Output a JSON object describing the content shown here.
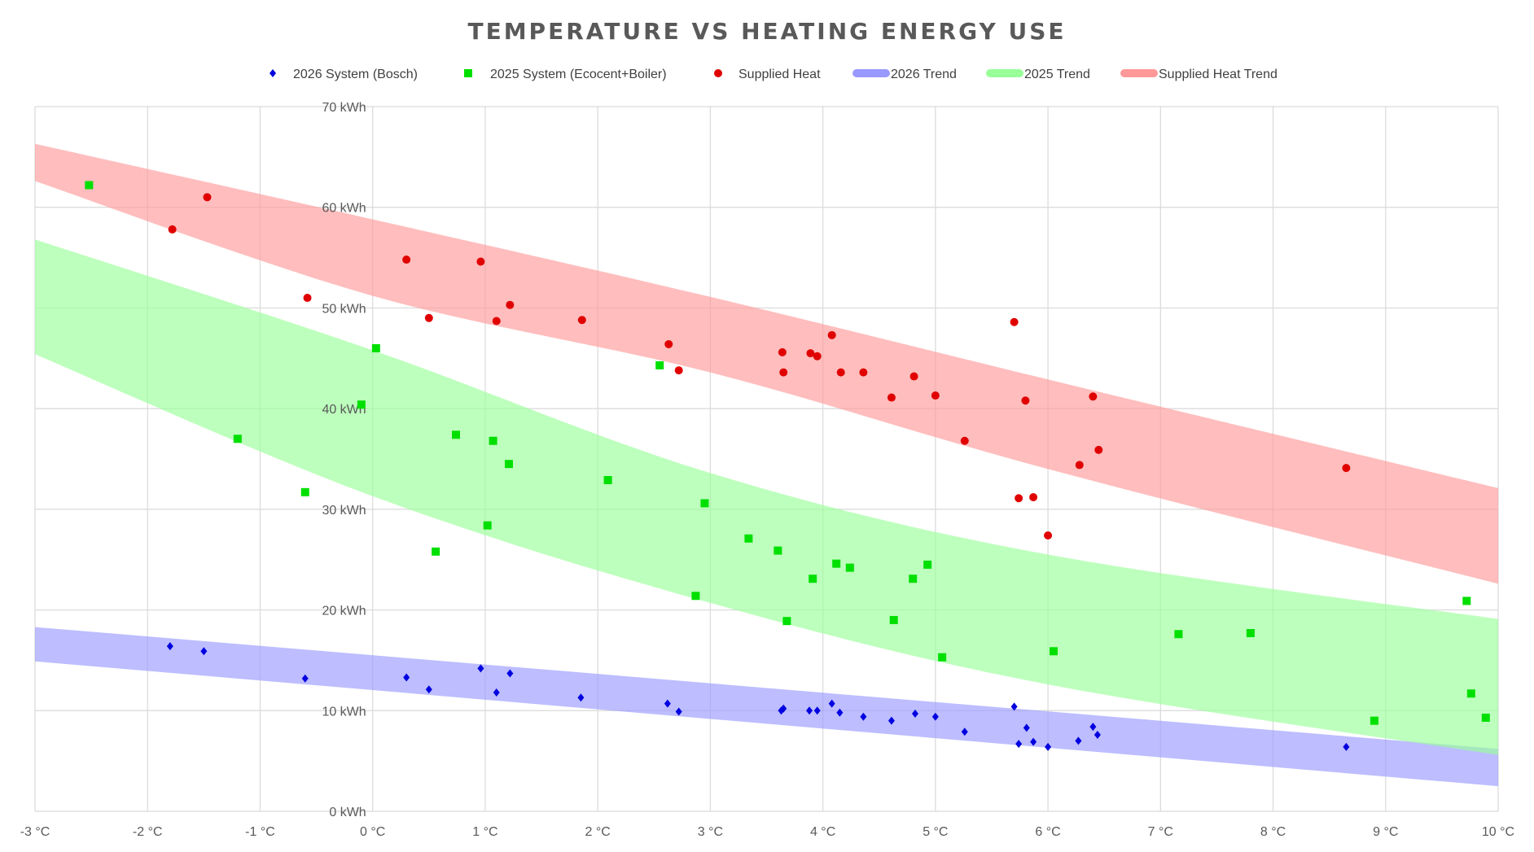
{
  "chart_data": {
    "type": "scatter",
    "title": "TEMPERATURE VS HEATING ENERGY USE",
    "xlabel": "",
    "ylabel": "",
    "xlim": [
      -3,
      10
    ],
    "ylim": [
      0,
      70
    ],
    "x_ticks": [
      -3,
      -2,
      -1,
      0,
      1,
      2,
      3,
      4,
      5,
      6,
      7,
      8,
      9,
      10
    ],
    "y_ticks": [
      0,
      10,
      20,
      30,
      40,
      50,
      60,
      70
    ],
    "x_tick_labels": [
      "-3 °C",
      "-2 °C",
      "-1 °C",
      "0 °C",
      "1 °C",
      "2 °C",
      "3 °C",
      "4 °C",
      "5 °C",
      "6 °C",
      "7 °C",
      "8 °C",
      "9 °C",
      "10 °C"
    ],
    "y_tick_labels": [
      "0 kWh",
      "10 kWh",
      "20 kWh",
      "30 kWh",
      "40 kWh",
      "50 kWh",
      "60 kWh",
      "70 kWh"
    ],
    "grid": true,
    "legend_position": "top",
    "legend": [
      "2026 System (Bosch)",
      "2025 System (Ecocent+Boiler)",
      "Supplied Heat",
      "2026 Trend",
      "2025 Trend",
      "Supplied Heat Trend"
    ],
    "series": [
      {
        "name": "2026 System (Bosch)",
        "marker": "diamond",
        "color": "#0000e0",
        "points": [
          [
            -1.8,
            16.4
          ],
          [
            -1.5,
            15.9
          ],
          [
            -0.6,
            13.2
          ],
          [
            0.3,
            13.3
          ],
          [
            0.5,
            12.1
          ],
          [
            0.96,
            14.2
          ],
          [
            1.1,
            11.8
          ],
          [
            1.22,
            13.7
          ],
          [
            1.85,
            11.3
          ],
          [
            2.62,
            10.7
          ],
          [
            2.72,
            9.9
          ],
          [
            3.63,
            10.0
          ],
          [
            3.65,
            10.2
          ],
          [
            3.88,
            10.0
          ],
          [
            3.95,
            10.0
          ],
          [
            4.08,
            10.7
          ],
          [
            4.15,
            9.8
          ],
          [
            4.36,
            9.4
          ],
          [
            4.61,
            9.0
          ],
          [
            4.82,
            9.7
          ],
          [
            5.0,
            9.4
          ],
          [
            5.26,
            7.9
          ],
          [
            5.7,
            10.4
          ],
          [
            5.74,
            6.7
          ],
          [
            5.81,
            8.3
          ],
          [
            5.87,
            6.9
          ],
          [
            6.0,
            6.4
          ],
          [
            6.27,
            7.0
          ],
          [
            6.4,
            8.4
          ],
          [
            6.44,
            7.6
          ],
          [
            8.65,
            6.4
          ]
        ]
      },
      {
        "name": "2025 System (Ecocent+Boiler)",
        "marker": "square",
        "color": "#00e000",
        "points": [
          [
            -2.52,
            62.2
          ],
          [
            -1.2,
            37.0
          ],
          [
            -0.6,
            31.7
          ],
          [
            -0.1,
            40.4
          ],
          [
            0.03,
            46.0
          ],
          [
            0.56,
            25.8
          ],
          [
            0.74,
            37.4
          ],
          [
            1.02,
            28.4
          ],
          [
            1.07,
            36.8
          ],
          [
            1.21,
            34.5
          ],
          [
            2.09,
            32.9
          ],
          [
            2.55,
            44.3
          ],
          [
            2.87,
            21.4
          ],
          [
            2.95,
            30.6
          ],
          [
            3.34,
            27.1
          ],
          [
            3.6,
            25.9
          ],
          [
            3.68,
            18.9
          ],
          [
            3.91,
            23.1
          ],
          [
            4.12,
            24.6
          ],
          [
            4.24,
            24.2
          ],
          [
            4.63,
            19.0
          ],
          [
            4.8,
            23.1
          ],
          [
            4.93,
            24.5
          ],
          [
            5.06,
            15.3
          ],
          [
            6.05,
            15.9
          ],
          [
            7.16,
            17.6
          ],
          [
            7.8,
            17.7
          ],
          [
            8.9,
            9.0
          ],
          [
            9.72,
            20.9
          ],
          [
            9.76,
            11.7
          ],
          [
            9.89,
            9.3
          ]
        ]
      },
      {
        "name": "Supplied Heat",
        "marker": "circle",
        "color": "#e00000",
        "points": [
          [
            -1.78,
            57.8
          ],
          [
            -1.47,
            61.0
          ],
          [
            -0.58,
            51.0
          ],
          [
            0.3,
            54.8
          ],
          [
            0.5,
            49.0
          ],
          [
            0.96,
            54.6
          ],
          [
            1.1,
            48.7
          ],
          [
            1.22,
            50.3
          ],
          [
            1.86,
            48.8
          ],
          [
            2.63,
            46.4
          ],
          [
            2.72,
            43.8
          ],
          [
            3.64,
            45.6
          ],
          [
            3.65,
            43.6
          ],
          [
            3.89,
            45.5
          ],
          [
            3.95,
            45.2
          ],
          [
            4.08,
            47.3
          ],
          [
            4.16,
            43.6
          ],
          [
            4.36,
            43.6
          ],
          [
            4.61,
            41.1
          ],
          [
            4.81,
            43.2
          ],
          [
            5.0,
            41.3
          ],
          [
            5.26,
            36.8
          ],
          [
            5.7,
            48.6
          ],
          [
            5.74,
            31.1
          ],
          [
            5.8,
            40.8
          ],
          [
            5.87,
            31.2
          ],
          [
            6.0,
            27.4
          ],
          [
            6.28,
            34.4
          ],
          [
            6.4,
            41.2
          ],
          [
            6.45,
            35.9
          ],
          [
            8.65,
            34.1
          ]
        ]
      }
    ],
    "trend_bands": [
      {
        "name": "2026 Trend",
        "color": "#9999ff",
        "x": [
          -3,
          10
        ],
        "upper": [
          18.3,
          6.2
        ],
        "lower": [
          14.9,
          2.5
        ],
        "model": "linear"
      },
      {
        "name": "2025 Trend",
        "color": "#99ff99",
        "x": [
          -3,
          0,
          3,
          6,
          10
        ],
        "upper": [
          56.8,
          45.8,
          33.6,
          25.5,
          19.1
        ],
        "lower": [
          45.4,
          31.3,
          20.7,
          12.6,
          5.6
        ],
        "model": "curved"
      },
      {
        "name": "Supplied Heat Trend",
        "color": "#ff9999",
        "x": [
          -3,
          10
        ],
        "upper": [
          66.3,
          32.1
        ],
        "lower": [
          62.6,
          22.6
        ],
        "model": "curved",
        "lower_mid": [
          [
            0,
            51.2
          ],
          [
            3,
            43.6
          ],
          [
            6,
            34.0
          ]
        ],
        "upper_mid": [
          [
            0,
            58.8
          ],
          [
            3,
            51.1
          ],
          [
            6,
            42.9
          ]
        ]
      }
    ]
  }
}
